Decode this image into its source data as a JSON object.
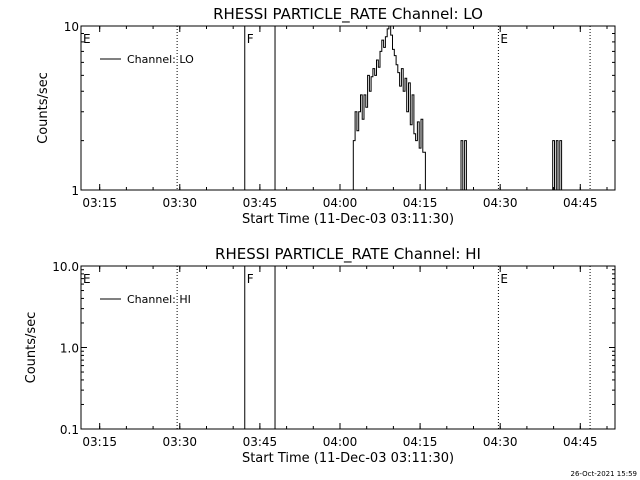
{
  "chart_data": [
    {
      "type": "line",
      "title": "RHESSI PARTICLE_RATE Channel: LO",
      "xlabel": "Start Time (11-Dec-03 03:11:30)",
      "ylabel": "Counts/sec",
      "y_scale": "log",
      "xlim": [
        "03:11:30",
        "04:51:30"
      ],
      "ylim": [
        1,
        10
      ],
      "x_ticks": [
        "03:15",
        "03:30",
        "03:45",
        "04:00",
        "04:15",
        "04:30",
        "04:45"
      ],
      "y_ticks": [
        "1",
        "10"
      ],
      "legend": {
        "entries": [
          "Channel: LO"
        ],
        "position": "top-left"
      },
      "grid": false,
      "markers": [
        {
          "time": "03:11:30",
          "label": "E",
          "style": "dotted"
        },
        {
          "time": "03:29:30",
          "label": "",
          "style": "dotted"
        },
        {
          "time": "03:42:10",
          "label": "F",
          "style": "solid"
        },
        {
          "time": "03:47:50",
          "label": "",
          "style": "solid"
        },
        {
          "time": "04:29:40",
          "label": "E",
          "style": "dotted"
        },
        {
          "time": "04:46:50",
          "label": "",
          "style": "dotted"
        }
      ],
      "series": [
        {
          "name": "Channel: LO",
          "points": [
            [
              "04:01:50",
              1
            ],
            [
              "04:02:30",
              2
            ],
            [
              "04:02:50",
              3
            ],
            [
              "04:03:10",
              2.3
            ],
            [
              "04:03:30",
              3
            ],
            [
              "04:03:50",
              3.8
            ],
            [
              "04:04:10",
              2.7
            ],
            [
              "04:04:30",
              3.8
            ],
            [
              "04:04:50",
              3.2
            ],
            [
              "04:05:10",
              5
            ],
            [
              "04:05:30",
              4
            ],
            [
              "04:05:50",
              4.9
            ],
            [
              "04:06:10",
              5.5
            ],
            [
              "04:06:30",
              5
            ],
            [
              "04:06:50",
              6.2
            ],
            [
              "04:07:10",
              5.6
            ],
            [
              "04:07:30",
              7
            ],
            [
              "04:07:50",
              8.2
            ],
            [
              "04:08:10",
              7.4
            ],
            [
              "04:08:30",
              8.6
            ],
            [
              "04:08:50",
              9.6
            ],
            [
              "04:09:10",
              10
            ],
            [
              "04:09:30",
              8.8
            ],
            [
              "04:09:50",
              7.2
            ],
            [
              "04:10:10",
              6.6
            ],
            [
              "04:10:30",
              5.8
            ],
            [
              "04:10:50",
              5.2
            ],
            [
              "04:11:10",
              4.3
            ],
            [
              "04:11:30",
              5.5
            ],
            [
              "04:11:50",
              4
            ],
            [
              "04:12:10",
              4.8
            ],
            [
              "04:12:30",
              3
            ],
            [
              "04:12:50",
              4.5
            ],
            [
              "04:13:10",
              2.5
            ],
            [
              "04:13:30",
              3.8
            ],
            [
              "04:13:50",
              2.2
            ],
            [
              "04:14:10",
              2
            ],
            [
              "04:14:30",
              2.6
            ],
            [
              "04:14:50",
              1.8
            ],
            [
              "04:15:10",
              2.7
            ],
            [
              "04:15:30",
              1.7
            ],
            [
              "04:16:00",
              1
            ],
            [
              "04:22:20",
              1
            ],
            [
              "04:22:40",
              2
            ],
            [
              "04:23:00",
              1
            ],
            [
              "04:23:20",
              2
            ],
            [
              "04:23:40",
              1
            ],
            [
              "04:39:30",
              1
            ],
            [
              "04:39:50",
              2
            ],
            [
              "04:40:10",
              1
            ],
            [
              "04:40:30",
              2
            ],
            [
              "04:40:50",
              1
            ],
            [
              "04:41:10",
              2
            ],
            [
              "04:41:30",
              1
            ]
          ]
        }
      ]
    },
    {
      "type": "line",
      "title": "RHESSI PARTICLE_RATE Channel: HI",
      "xlabel": "Start Time (11-Dec-03 03:11:30)",
      "ylabel": "Counts/sec",
      "y_scale": "log",
      "xlim": [
        "03:11:30",
        "04:51:30"
      ],
      "ylim": [
        0.1,
        10
      ],
      "x_ticks": [
        "03:15",
        "03:30",
        "03:45",
        "04:00",
        "04:15",
        "04:30",
        "04:45"
      ],
      "y_ticks": [
        "0.1",
        "1.0",
        "10.0"
      ],
      "legend": {
        "entries": [
          "Channel: HI"
        ],
        "position": "top-left"
      },
      "grid": false,
      "markers": [
        {
          "time": "03:11:30",
          "label": "E",
          "style": "dotted"
        },
        {
          "time": "03:29:30",
          "label": "",
          "style": "dotted"
        },
        {
          "time": "03:42:10",
          "label": "F",
          "style": "solid"
        },
        {
          "time": "03:47:50",
          "label": "",
          "style": "solid"
        },
        {
          "time": "04:29:40",
          "label": "E",
          "style": "dotted"
        },
        {
          "time": "04:46:50",
          "label": "",
          "style": "dotted"
        }
      ],
      "series": [
        {
          "name": "Channel: HI",
          "points": []
        }
      ]
    }
  ],
  "footer": {
    "timestamp": "26-Oct-2021 15:59"
  },
  "colors": {
    "background": "#ffffff",
    "foreground": "#000000"
  }
}
